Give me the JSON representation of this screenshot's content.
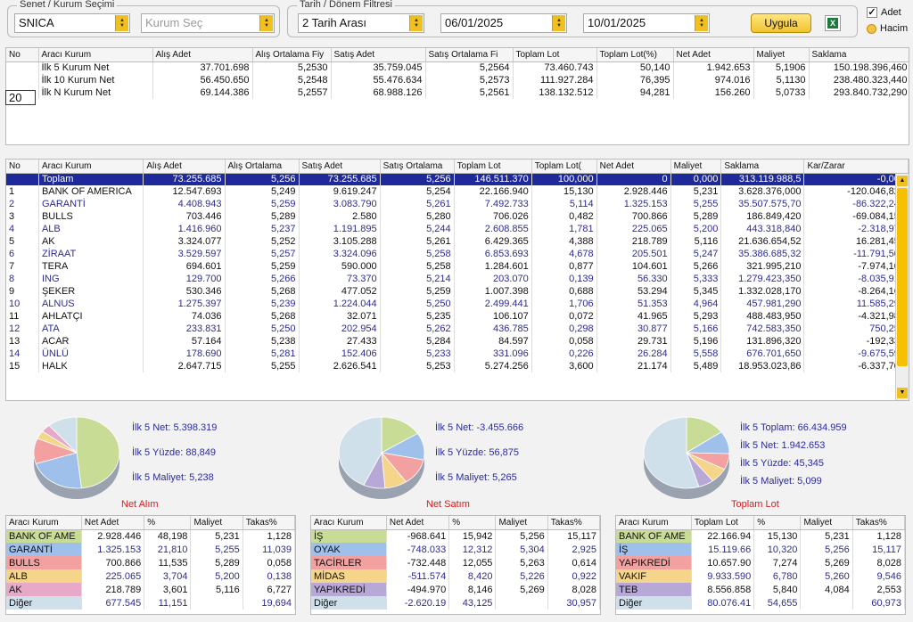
{
  "filters": {
    "senet_group_title": "Senet / Kurum Seçimi",
    "senet_value": "SNICA",
    "kurum_placeholder": "Kurum Seç",
    "tarih_group_title": "Tarih / Dönem Filtresi",
    "period_value": "2 Tarih Arası",
    "start_date": "06/01/2025",
    "end_date": "10/01/2025",
    "apply_label": "Uygula",
    "adet_label": "Adet",
    "hacim_label": "Hacim"
  },
  "summary": {
    "headers": [
      "No",
      "Aracı Kurum",
      "Alış Adet",
      "Alış Ortalama Fiy",
      "Satış Adet",
      "Satış Ortalama Fi",
      "Toplam Lot",
      "Toplam Lot(%)",
      "Net Adet",
      "Maliyet",
      "Saklama"
    ],
    "n_input": "20",
    "rows": [
      [
        "",
        "İlk 5 Kurum Net",
        "37.701.698",
        "5,2530",
        "35.759.045",
        "5,2564",
        "73.460.743",
        "50,140",
        "1.942.653",
        "5,1906",
        "150.198.396,460"
      ],
      [
        "",
        "İlk 10 Kurum Net",
        "56.450.650",
        "5,2548",
        "55.476.634",
        "5,2573",
        "111.927.284",
        "76,395",
        "974.016",
        "5,1130",
        "238.480.323,440"
      ],
      [
        "",
        "İlk N Kurum Net",
        "69.144.386",
        "5,2557",
        "68.988.126",
        "5,2561",
        "138.132.512",
        "94,281",
        "156.260",
        "5,0733",
        "293.840.732,290"
      ]
    ]
  },
  "main": {
    "headers": [
      "No",
      "Aracı Kurum",
      "Alış Adet",
      "Alış Ortalama",
      "Satış Adet",
      "Satış Ortalama",
      "Toplam Lot",
      "Toplam Lot(",
      "Net Adet",
      "Maliyet",
      "Saklama",
      "Kar/Zarar"
    ],
    "rows": [
      [
        "",
        "Toplam",
        "73.255.685",
        "5,256",
        "73.255.685",
        "5,256",
        "146.511.370",
        "100,000",
        "0",
        "0,000",
        "313.119.988,5",
        "-0,000"
      ],
      [
        "1",
        "BANK OF AMERICA",
        "12.547.693",
        "5,249",
        "9.619.247",
        "5,254",
        "22.166.940",
        "15,130",
        "2.928.446",
        "5,231",
        "3.628.376,000",
        "-120.046,820"
      ],
      [
        "2",
        "GARANTİ",
        "4.408.943",
        "5,259",
        "3.083.790",
        "5,261",
        "7.492.733",
        "5,114",
        "1.325.153",
        "5,255",
        "35.507.575,70",
        "-86.322,240"
      ],
      [
        "3",
        "BULLS",
        "703.446",
        "5,289",
        "2.580",
        "5,280",
        "706.026",
        "0,482",
        "700.866",
        "5,289",
        "186.849,420",
        "-69.084,150"
      ],
      [
        "4",
        "ALB",
        "1.416.960",
        "5,237",
        "1.191.895",
        "5,244",
        "2.608.855",
        "1,781",
        "225.065",
        "5,200",
        "443.318,840",
        "-2.318,970"
      ],
      [
        "5",
        "AK",
        "3.324.077",
        "5,252",
        "3.105.288",
        "5,261",
        "6.429.365",
        "4,388",
        "218.789",
        "5,116",
        "21.636.654,52",
        "16.281,450"
      ],
      [
        "6",
        "ZİRAAT",
        "3.529.597",
        "5,257",
        "3.324.096",
        "5,258",
        "6.853.693",
        "4,678",
        "205.501",
        "5,247",
        "35.386.685,32",
        "-11.791,500"
      ],
      [
        "7",
        "TERA",
        "694.601",
        "5,259",
        "590.000",
        "5,258",
        "1.284.601",
        "0,877",
        "104.601",
        "5,266",
        "321.995,210",
        "-7.974,100"
      ],
      [
        "8",
        "ING",
        "129.700",
        "5,266",
        "73.370",
        "5,214",
        "203.070",
        "0,139",
        "56.330",
        "5,333",
        "1.279.423,350",
        "-8.035,910"
      ],
      [
        "9",
        "ŞEKER",
        "530.346",
        "5,268",
        "477.052",
        "5,259",
        "1.007.398",
        "0,688",
        "53.294",
        "5,345",
        "1.332.028,170",
        "-8.264,160"
      ],
      [
        "10",
        "ALNUS",
        "1.275.397",
        "5,239",
        "1.224.044",
        "5,250",
        "2.499.441",
        "1,706",
        "51.353",
        "4,964",
        "457.981,290",
        "11.585,290"
      ],
      [
        "11",
        "AHLATÇI",
        "74.036",
        "5,268",
        "32.071",
        "5,235",
        "106.107",
        "0,072",
        "41.965",
        "5,293",
        "488.483,950",
        "-4.321,980"
      ],
      [
        "12",
        "ATA",
        "233.831",
        "5,250",
        "202.954",
        "5,262",
        "436.785",
        "0,298",
        "30.877",
        "5,166",
        "742.583,350",
        "750,250"
      ],
      [
        "13",
        "ACAR",
        "57.164",
        "5,238",
        "27.433",
        "5,284",
        "84.597",
        "0,058",
        "29.731",
        "5,196",
        "131.896,320",
        "-192,330"
      ],
      [
        "14",
        "ÜNLÜ",
        "178.690",
        "5,281",
        "152.406",
        "5,233",
        "331.096",
        "0,226",
        "26.284",
        "5,558",
        "676.701,650",
        "-9.675,590"
      ],
      [
        "15",
        "HALK",
        "2.647.715",
        "5,255",
        "2.626.541",
        "5,253",
        "5.274.256",
        "3,600",
        "21.174",
        "5,489",
        "18.953.023,86",
        "-6.337,700"
      ]
    ]
  },
  "pies": [
    {
      "caption": "Net Alım",
      "lines": [
        "İlk 5 Net: 5.398.319",
        "İlk 5 Yüzde: 88,849",
        "İlk 5 Maliyet: 5,238"
      ],
      "slices": [
        {
          "value": 48.198,
          "color": "#c8dc96"
        },
        {
          "value": 21.81,
          "color": "#9fc0ea"
        },
        {
          "value": 11.535,
          "color": "#f2a0a0"
        },
        {
          "value": 3.704,
          "color": "#f5d58a"
        },
        {
          "value": 3.601,
          "color": "#e8a8c8"
        },
        {
          "value": 11.151,
          "color": "#cfe0ea"
        }
      ],
      "table": {
        "headers": [
          "Aracı Kurum",
          "Net Adet",
          "%",
          "Maliyet",
          "Takas%"
        ],
        "rows": [
          [
            "BANK OF AME",
            "2.928.446",
            "48,198",
            "5,231",
            "1,128"
          ],
          [
            "GARANTİ",
            "1.325.153",
            "21,810",
            "5,255",
            "11,039"
          ],
          [
            "BULLS",
            "700.866",
            "11,535",
            "5,289",
            "0,058"
          ],
          [
            "ALB",
            "225.065",
            "3,704",
            "5,200",
            "0,138"
          ],
          [
            "AK",
            "218.789",
            "3,601",
            "5,116",
            "6,727"
          ],
          [
            "Diğer",
            "677.545",
            "11,151",
            "",
            "19,694"
          ]
        ]
      }
    },
    {
      "caption": "Net Satım",
      "lines": [
        "İlk 5 Net: -3.455.666",
        "İlk 5 Yüzde: 56,875",
        "İlk 5 Maliyet: 5,265"
      ],
      "slices": [
        {
          "value": 15.942,
          "color": "#c8dc96"
        },
        {
          "value": 12.312,
          "color": "#9fc0ea"
        },
        {
          "value": 12.055,
          "color": "#f2a0a0"
        },
        {
          "value": 8.42,
          "color": "#f5d58a"
        },
        {
          "value": 8.146,
          "color": "#b8a8d8"
        },
        {
          "value": 43.125,
          "color": "#cfe0ea"
        }
      ],
      "table": {
        "headers": [
          "Aracı Kurum",
          "Net Adet",
          "%",
          "Maliyet",
          "Takas%"
        ],
        "rows": [
          [
            "İŞ",
            "-968.641",
            "15,942",
            "5,256",
            "15,117"
          ],
          [
            "OYAK",
            "-748.033",
            "12,312",
            "5,304",
            "2,925"
          ],
          [
            "TACİRLER",
            "-732.448",
            "12,055",
            "5,263",
            "0,614"
          ],
          [
            "MİDAS",
            "-511.574",
            "8,420",
            "5,226",
            "0,922"
          ],
          [
            "YAPIKREDİ",
            "-494.970",
            "8,146",
            "5,269",
            "8,028"
          ],
          [
            "Diğer",
            "-2.620.19",
            "43,125",
            "",
            "30,957"
          ]
        ]
      }
    },
    {
      "caption": "Toplam Lot",
      "lines": [
        "İlk 5 Toplam: 66.434.959",
        "İlk 5 Net: 1.942.653",
        "İlk 5 Yüzde: 45,345",
        "İlk 5 Maliyet: 5,099"
      ],
      "slices": [
        {
          "value": 15.13,
          "color": "#c8dc96"
        },
        {
          "value": 10.32,
          "color": "#9fc0ea"
        },
        {
          "value": 7.274,
          "color": "#f2a0a0"
        },
        {
          "value": 6.78,
          "color": "#f5d58a"
        },
        {
          "value": 5.84,
          "color": "#b8a8d8"
        },
        {
          "value": 54.655,
          "color": "#cfe0ea"
        }
      ],
      "table": {
        "headers": [
          "Aracı Kurum",
          "Toplam Lot",
          "%",
          "Maliyet",
          "Takas%"
        ],
        "rows": [
          [
            "BANK OF AME",
            "22.166.94",
            "15,130",
            "5,231",
            "1,128"
          ],
          [
            "İŞ",
            "15.119.66",
            "10,320",
            "5,256",
            "15,117"
          ],
          [
            "YAPIKREDİ",
            "10.657.90",
            "7,274",
            "5,269",
            "8,028"
          ],
          [
            "VAKIF",
            "9.933.590",
            "6,780",
            "5,260",
            "9,546"
          ],
          [
            "TEB",
            "8.556.858",
            "5,840",
            "4,084",
            "2,553"
          ],
          [
            "Diğer",
            "80.076.41",
            "54,655",
            "",
            "60,973"
          ]
        ]
      }
    }
  ]
}
